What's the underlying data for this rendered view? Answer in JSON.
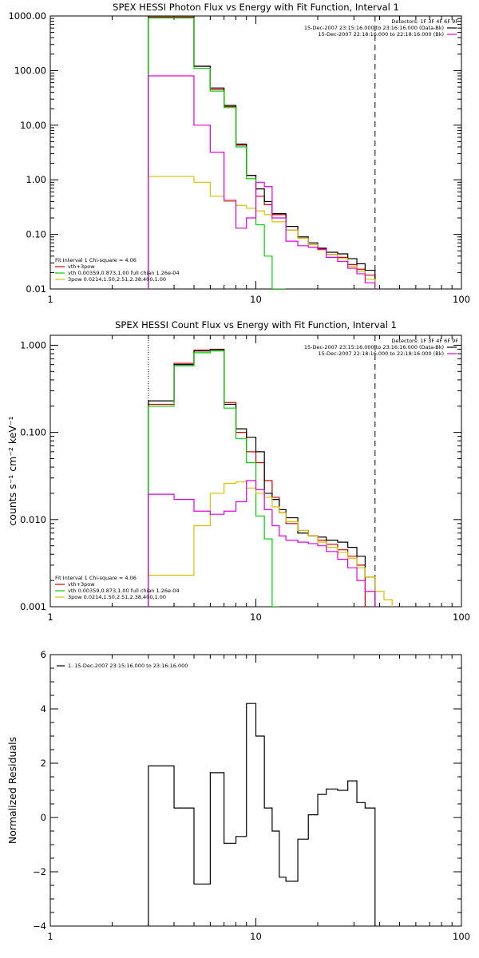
{
  "colors": {
    "data": "#000000",
    "bk": "#e000e0",
    "total": "#d00000",
    "vth": "#00d000",
    "pow": "#d8c000"
  },
  "chart_data": [
    {
      "type": "line",
      "title": "SPEX HESSI Photon Flux vs Energy with Fit Function, Interval 1",
      "xscale": "log",
      "yscale": "log",
      "xlim": [
        1,
        100
      ],
      "ylim": [
        0.01,
        1000
      ],
      "xticks": [
        "1",
        "10",
        "100"
      ],
      "yticks": [
        "1000.00",
        "100.00",
        "10.00",
        "1.00",
        "0.10",
        "0.01"
      ],
      "ytick_values": [
        1000,
        100,
        10,
        1,
        0.1,
        0.01
      ],
      "legend_top": [
        {
          "text": "Detectors: 1F 3F 4F 6F 9F",
          "color": ""
        },
        {
          "text": "15-Dec-2007 23:15:16.000 to 23:16:16.000 (Data-Bk)",
          "color": "data"
        },
        {
          "text": "15-Dec-2007 22:18:16.000 to 22:18:16.000 (Bk)",
          "color": "bk"
        }
      ],
      "legend_bottom": [
        {
          "text": "Fit Interval 1   Chi-square = 4.06",
          "color": ""
        },
        {
          "text": "vth+3pow",
          "color": "total"
        },
        {
          "text": "vth 0.00359,0.873,1.00  full chian 1.26e-04",
          "color": "vth"
        },
        {
          "text": "3pow 0.0214,1.50,2.51,2.38,400,1.00",
          "color": "pow"
        }
      ],
      "fit_lines": [
        3,
        38
      ],
      "edges": [
        3,
        4,
        5,
        6,
        7,
        8,
        9,
        10,
        11,
        12,
        14,
        16,
        18,
        20,
        22,
        25,
        28,
        31,
        34,
        38
      ],
      "series": [
        {
          "color": "total",
          "values": [
            950,
            950,
            120,
            45,
            22,
            4.3,
            1.2,
            0.5,
            0.35,
            0.23,
            0.12,
            0.085,
            0.065,
            0.055,
            0.043,
            0.038,
            0.028,
            0.023,
            0.018
          ]
        },
        {
          "color": "data",
          "values": [
            1000,
            1000,
            120,
            48,
            23,
            4.5,
            1.2,
            0.68,
            0.4,
            0.24,
            0.14,
            0.09,
            0.07,
            0.056,
            0.047,
            0.044,
            0.036,
            0.029,
            0.022
          ]
        },
        {
          "color": "vth",
          "values": [
            920,
            920,
            110,
            42,
            21,
            4.0,
            1.05,
            0.15,
            0.04,
            0.01
          ]
        },
        {
          "color": "pow",
          "values": [
            1.15,
            1.15,
            0.9,
            0.5,
            0.4,
            0.34,
            0.3,
            0.27,
            0.23,
            0.17,
            0.12,
            0.085,
            0.065,
            0.052,
            0.043,
            0.036,
            0.026,
            0.021,
            0.015
          ]
        },
        {
          "color": "bk",
          "values": [
            80,
            80,
            10,
            3.2,
            0.42,
            0.13,
            0.2,
            0.9,
            0.75,
            0.2,
            0.075,
            0.062,
            0.058,
            0.053,
            0.038,
            0.032,
            0.024,
            0.019,
            0.013
          ]
        }
      ]
    },
    {
      "type": "line",
      "title": "SPEX HESSI Count Flux vs Energy with Fit Function, Interval 1",
      "ylabel": "counts s⁻¹ cm⁻² keV⁻¹",
      "xscale": "log",
      "yscale": "log",
      "xlim": [
        1,
        100
      ],
      "ylim": [
        0.001,
        1.3
      ],
      "xticks": [
        "1",
        "10",
        "100"
      ],
      "yticks": [
        "1.000",
        "0.100",
        "0.010",
        "0.001"
      ],
      "ytick_values": [
        1,
        0.1,
        0.01,
        0.001
      ],
      "legend_top": [
        {
          "text": "Detectors: 1F 3F 4F 6F 9F",
          "color": ""
        },
        {
          "text": "15-Dec-2007 23:15:16.000 to 23:16:16.000 (Data-Bk)",
          "color": "data"
        },
        {
          "text": "15-Dec-2007 22:18:16.000 to 22:18:16.000 (Bk)",
          "color": "bk"
        }
      ],
      "legend_bottom": [
        {
          "text": "Fit Interval 1   Chi-square = 4.06",
          "color": ""
        },
        {
          "text": "vth+3pow",
          "color": "total"
        },
        {
          "text": "vth 0.00359,0.873,1.00  full chian 1.26e-04",
          "color": "vth"
        },
        {
          "text": "3pow 0.0214,1.50,2.51,2.38,400,1.00",
          "color": "pow"
        }
      ],
      "fit_lines": [
        3,
        38
      ],
      "edges": [
        3,
        4,
        5,
        6,
        7,
        8,
        9,
        10,
        11,
        12,
        13,
        14,
        16,
        18,
        20,
        22,
        25,
        28,
        31,
        34,
        38,
        42,
        46
      ],
      "series": [
        {
          "color": "total",
          "values": [
            0.21,
            0.62,
            0.88,
            0.9,
            0.22,
            0.1,
            0.06,
            0.045,
            0.028,
            0.018,
            0.012,
            0.009,
            0.0075,
            0.0065,
            0.0058,
            0.0052,
            0.0045,
            0.0038,
            0.003
          ]
        },
        {
          "color": "data",
          "values": [
            0.23,
            0.6,
            0.86,
            0.89,
            0.21,
            0.11,
            0.088,
            0.06,
            0.02,
            0.017,
            0.013,
            0.0105,
            0.007,
            0.0065,
            0.0063,
            0.0058,
            0.0055,
            0.0048,
            0.0038,
            0.0022
          ]
        },
        {
          "color": "vth",
          "values": [
            0.2,
            0.58,
            0.82,
            0.86,
            0.19,
            0.085,
            0.045,
            0.011,
            0.006,
            0.001
          ]
        },
        {
          "color": "pow",
          "values": [
            0.0023,
            0.0023,
            0.0085,
            0.02,
            0.026,
            0.027,
            0.023,
            0.02,
            0.018,
            0.014,
            0.012,
            0.0095,
            0.0075,
            0.0065,
            0.0055,
            0.0048,
            0.0042,
            0.0036,
            0.0028,
            0.0022,
            0.0015,
            0.0012,
            0.001
          ]
        },
        {
          "color": "bk",
          "values": [
            0.0195,
            0.017,
            0.0125,
            0.0115,
            0.0125,
            0.016,
            0.028,
            0.022,
            0.013,
            0.0085,
            0.0065,
            0.0058,
            0.0055,
            0.0053,
            0.005,
            0.0043,
            0.0035,
            0.0028,
            0.002,
            0.0015
          ]
        }
      ]
    },
    {
      "type": "line",
      "ylabel": "Normalized Residuals",
      "xscale": "log",
      "yscale": "linear",
      "xlim": [
        1,
        100
      ],
      "ylim": [
        -4,
        6
      ],
      "xticks": [
        "1",
        "10",
        "100"
      ],
      "yticks": [
        "6",
        "4",
        "2",
        "0",
        "−2",
        "−4"
      ],
      "ytick_values": [
        6,
        4,
        2,
        0,
        -2,
        -4
      ],
      "legend_top": [
        {
          "text": "1. 15-Dec-2007 23:15:16.000 to 23:16:16.000",
          "color": "data"
        }
      ],
      "edges": [
        3,
        4,
        5,
        6,
        7,
        8,
        9,
        10,
        11,
        12,
        13,
        14,
        16,
        18,
        20,
        22,
        25,
        28,
        31,
        34,
        38
      ],
      "series": [
        {
          "color": "data",
          "values": [
            1.9,
            0.35,
            -2.45,
            1.65,
            -0.95,
            -0.7,
            4.2,
            3.0,
            0.35,
            -0.5,
            -2.2,
            -2.35,
            -0.8,
            0.1,
            0.85,
            1.05,
            1.0,
            1.35,
            0.55,
            0.35
          ]
        }
      ]
    }
  ]
}
